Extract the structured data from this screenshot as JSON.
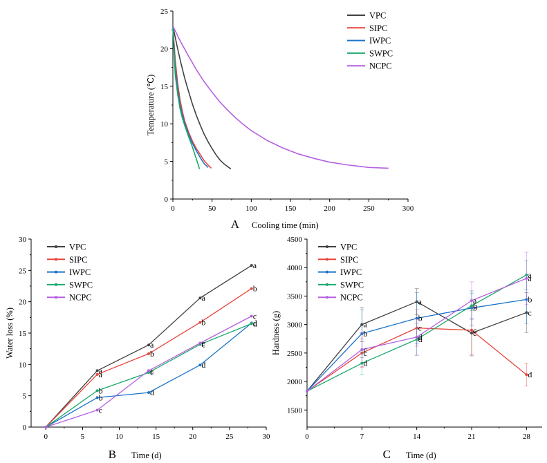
{
  "colors": {
    "VPC": "#404040",
    "SIPC": "#e8443a",
    "IWPC": "#1a73c8",
    "SWPC": "#1aa86a",
    "NCPC": "#b460e0"
  },
  "chart_data": [
    {
      "id": "A",
      "type": "line",
      "panel_label": "A",
      "xlabel": "Cooling time (min)",
      "ylabel": "Temperature (℃)",
      "xlim": [
        0,
        300
      ],
      "ylim": [
        0,
        25
      ],
      "xticks": [
        0,
        50,
        100,
        150,
        200,
        250,
        300
      ],
      "yticks": [
        0,
        5,
        10,
        15,
        20,
        25
      ],
      "legend": [
        "VPC",
        "SIPC",
        "IWPC",
        "SWPC",
        "NCPC"
      ],
      "series": [
        {
          "name": "VPC",
          "x": [
            0,
            5,
            10,
            15,
            20,
            25,
            30,
            35,
            40,
            45,
            50,
            55,
            60,
            65,
            70,
            74
          ],
          "y": [
            23,
            20.5,
            18.2,
            16.1,
            14.3,
            12.6,
            11.1,
            9.8,
            8.6,
            7.6,
            6.7,
            5.9,
            5.2,
            4.7,
            4.3,
            4.0
          ]
        },
        {
          "name": "SIPC",
          "x": [
            0,
            3,
            6,
            9,
            12,
            15,
            20,
            25,
            30,
            35,
            40,
            45,
            49
          ],
          "y": [
            23,
            18.5,
            15.5,
            13.3,
            11.7,
            10.4,
            8.9,
            7.7,
            6.7,
            5.9,
            5.1,
            4.5,
            4.1
          ]
        },
        {
          "name": "IWPC",
          "x": [
            0,
            3,
            6,
            9,
            12,
            15,
            20,
            25,
            30,
            35,
            40,
            45
          ],
          "y": [
            23,
            17.5,
            14.6,
            12.6,
            11.2,
            10.1,
            8.6,
            7.4,
            6.4,
            5.5,
            4.7,
            4.2
          ]
        },
        {
          "name": "SWPC",
          "x": [
            0,
            3,
            6,
            9,
            12,
            15,
            20,
            25,
            30,
            34
          ],
          "y": [
            23,
            16.5,
            14.0,
            12.1,
            10.8,
            9.8,
            8.3,
            6.9,
            5.3,
            4.0
          ]
        },
        {
          "name": "NCPC",
          "x": [
            0,
            10,
            20,
            30,
            40,
            50,
            60,
            70,
            80,
            90,
            100,
            120,
            140,
            160,
            180,
            200,
            225,
            250,
            275
          ],
          "y": [
            23,
            20.9,
            19.0,
            17.2,
            15.6,
            14.2,
            12.9,
            11.8,
            10.8,
            9.9,
            9.1,
            7.8,
            6.8,
            6.0,
            5.4,
            4.9,
            4.5,
            4.2,
            4.1
          ]
        }
      ]
    },
    {
      "id": "B",
      "type": "line",
      "panel_label": "B",
      "xlabel": "Time (d)",
      "ylabel": "Water loss (%)",
      "xlim": [
        -2,
        30
      ],
      "ylim": [
        0,
        30
      ],
      "xticks": [
        0,
        5,
        10,
        15,
        20,
        25,
        30
      ],
      "yticks": [
        0,
        5,
        10,
        15,
        20,
        25,
        30
      ],
      "legend": [
        "VPC",
        "SIPC",
        "IWPC",
        "SWPC",
        "NCPC"
      ],
      "series": [
        {
          "name": "VPC",
          "x": [
            0,
            7,
            14,
            21,
            28
          ],
          "y": [
            0,
            9.0,
            13.1,
            20.6,
            25.8
          ],
          "labels": [
            "",
            "a",
            "a",
            "a",
            "a"
          ]
        },
        {
          "name": "SIPC",
          "x": [
            0,
            7,
            14,
            21,
            28
          ],
          "y": [
            0,
            8.4,
            11.7,
            16.7,
            22.1
          ],
          "labels": [
            "",
            "a",
            "b",
            "b",
            "b"
          ]
        },
        {
          "name": "IWPC",
          "x": [
            0,
            7,
            14,
            21,
            28
          ],
          "y": [
            0,
            4.7,
            5.5,
            9.9,
            16.6
          ],
          "labels": [
            "",
            "b",
            "d",
            "d",
            "d"
          ]
        },
        {
          "name": "SWPC",
          "x": [
            0,
            7,
            14,
            21,
            28
          ],
          "y": [
            0,
            5.8,
            8.7,
            13.2,
            16.5
          ],
          "labels": [
            "",
            "b",
            "c",
            "c",
            "d"
          ]
        },
        {
          "name": "NCPC",
          "x": [
            0,
            7,
            14,
            21,
            28
          ],
          "y": [
            0,
            2.7,
            9.0,
            13.4,
            17.7
          ],
          "labels": [
            "",
            "c",
            "c",
            "c",
            "c"
          ]
        }
      ]
    },
    {
      "id": "C",
      "type": "line",
      "panel_label": "C",
      "xlabel": "Time (d)",
      "ylabel": "Hardness (g)",
      "xlim": [
        0,
        30
      ],
      "ylim": [
        1200,
        4500
      ],
      "xticks": [
        0,
        7,
        14,
        21,
        28
      ],
      "yticks": [
        1500,
        2000,
        2500,
        3000,
        3500,
        4000,
        4500
      ],
      "legend": [
        "VPC",
        "SIPC",
        "IWPC",
        "SWPC",
        "NCPC"
      ],
      "series": [
        {
          "name": "VPC",
          "x": [
            0,
            7,
            14,
            21,
            28
          ],
          "y": [
            1830,
            3000,
            3400,
            2850,
            3210
          ],
          "err": [
            0,
            300,
            230,
            400,
            350
          ],
          "labels": [
            "",
            "a",
            "a",
            "c",
            "c"
          ]
        },
        {
          "name": "SIPC",
          "x": [
            0,
            7,
            14,
            21,
            28
          ],
          "y": [
            1830,
            2500,
            2940,
            2900,
            2120
          ],
          "err": [
            0,
            250,
            320,
            420,
            200
          ],
          "labels": [
            "",
            "c",
            "c",
            "c",
            "d"
          ]
        },
        {
          "name": "IWPC",
          "x": [
            0,
            7,
            14,
            21,
            28
          ],
          "y": [
            1830,
            2840,
            3110,
            3290,
            3440
          ],
          "err": [
            0,
            420,
            450,
            300,
            420
          ],
          "labels": [
            "",
            "b",
            "b",
            "b",
            "b"
          ]
        },
        {
          "name": "SWPC",
          "x": [
            0,
            7,
            14,
            21,
            28
          ],
          "y": [
            1830,
            2320,
            2740,
            3330,
            3870
          ],
          "err": [
            0,
            200,
            280,
            220,
            250
          ],
          "labels": [
            "",
            "d",
            "d",
            "b",
            "a"
          ]
        },
        {
          "name": "NCPC",
          "x": [
            0,
            7,
            14,
            21,
            28
          ],
          "y": [
            1830,
            2560,
            2780,
            3420,
            3810
          ],
          "err": [
            0,
            300,
            320,
            330,
            460
          ],
          "labels": [
            "",
            "c",
            "d",
            "a",
            "a"
          ]
        }
      ]
    }
  ]
}
